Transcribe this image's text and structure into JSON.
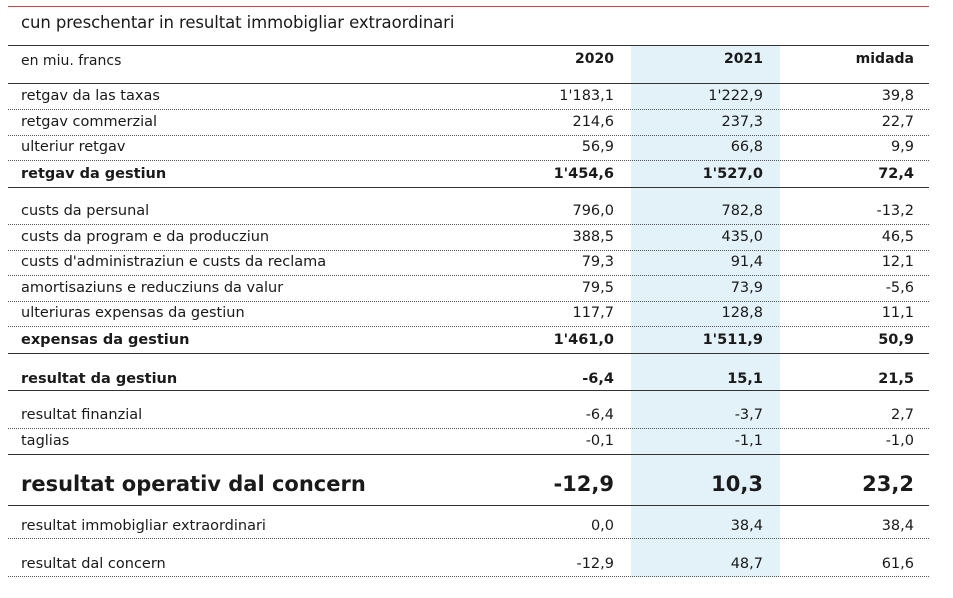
{
  "title": "cun preschentar in resultat immobigliar extraordinari",
  "header": {
    "unit": "en miu. francs",
    "col1": "2020",
    "col2": "2021",
    "col3": "midada"
  },
  "rows": [
    {
      "label": "retgav da las taxas",
      "v2020": "1'183,1",
      "v2021": "1'222,9",
      "midada": "39,8"
    },
    {
      "label": "retgav commerzial",
      "v2020": "214,6",
      "v2021": "237,3",
      "midada": "22,7"
    },
    {
      "label": "ulteriur retgav",
      "v2020": "56,9",
      "v2021": "66,8",
      "midada": "9,9"
    },
    {
      "label": "retgav da gestiun",
      "v2020": "1'454,6",
      "v2021": "1'527,0",
      "midada": "72,4"
    },
    {
      "label": "custs da persunal",
      "v2020": "796,0",
      "v2021": "782,8",
      "midada": "-13,2"
    },
    {
      "label": "custs da program e da producziun",
      "v2020": "388,5",
      "v2021": "435,0",
      "midada": "46,5"
    },
    {
      "label": "custs d'administraziun e custs da reclama",
      "v2020": "79,3",
      "v2021": "91,4",
      "midada": "12,1"
    },
    {
      "label": "amortisaziuns e reducziuns da valur",
      "v2020": "79,5",
      "v2021": "73,9",
      "midada": "-5,6"
    },
    {
      "label": "ulteriuras expensas da gestiun",
      "v2020": "117,7",
      "v2021": "128,8",
      "midada": "11,1"
    },
    {
      "label": "expensas da gestiun",
      "v2020": "1'461,0",
      "v2021": "1'511,9",
      "midada": "50,9"
    },
    {
      "label": "resultat da gestiun",
      "v2020": "-6,4",
      "v2021": "15,1",
      "midada": "21,5"
    },
    {
      "label": "resultat finanzial",
      "v2020": "-6,4",
      "v2021": "-3,7",
      "midada": "2,7"
    },
    {
      "label": "taglias",
      "v2020": "-0,1",
      "v2021": "-1,1",
      "midada": "-1,0"
    },
    {
      "label": "resultat operativ dal concern",
      "v2020": "-12,9",
      "v2021": "10,3",
      "midada": "23,2"
    },
    {
      "label": "resultat immobigliar extraordinari",
      "v2020": "0,0",
      "v2021": "38,4",
      "midada": "38,4"
    },
    {
      "label": "resultat dal concern",
      "v2020": "-12,9",
      "v2021": "48,7",
      "midada": "61,6"
    }
  ]
}
